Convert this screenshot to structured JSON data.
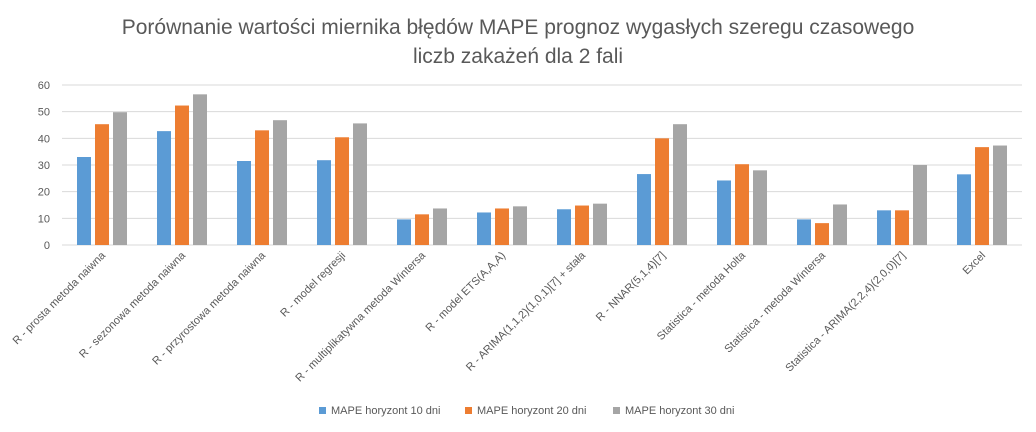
{
  "chart_data": {
    "type": "bar",
    "title": [
      "Porównanie wartości miernika błędów MAPE prognoz wygasłych szeregu czasowego",
      "liczb zakażeń dla 2 fali"
    ],
    "xlabel": "",
    "ylabel": "",
    "ylim": [
      0,
      60
    ],
    "yticks": [
      0,
      10,
      20,
      30,
      40,
      50,
      60
    ],
    "grid": true,
    "legend_position": "bottom",
    "categories": [
      "R - prosta metoda naiwna",
      "R - sezonowa metoda naiwna",
      "R - przyrostowa metoda naiwna",
      "R - model regresji",
      "R - multiplikatywna metoda Wintersa",
      "R - model ETS(A,A,A)",
      "R - ARIMA(1,1,2)(1,0,1)[7] + stała",
      "R - NNAR(5,1,4)[7]",
      "Statistica - metoda Holta",
      "Statistica - metoda Wintersa",
      "Statistica - ARIMA(2,2,4)(2,0,0)[7]",
      "Excel"
    ],
    "series": [
      {
        "name": "MAPE horyzont 10 dni",
        "color": "#5b9bd5",
        "values": [
          33.0,
          42.7,
          31.5,
          31.8,
          9.6,
          12.2,
          13.4,
          26.6,
          24.2,
          9.6,
          13.0,
          26.5
        ]
      },
      {
        "name": "MAPE horyzont 20 dni",
        "color": "#ed7d31",
        "values": [
          45.3,
          52.3,
          43.0,
          40.4,
          11.5,
          13.7,
          14.8,
          40.0,
          30.3,
          8.2,
          13.0,
          36.7
        ]
      },
      {
        "name": "MAPE horyzont 30 dni",
        "color": "#a5a5a5",
        "values": [
          49.8,
          56.5,
          46.8,
          45.6,
          13.7,
          14.5,
          15.5,
          45.3,
          28.0,
          15.2,
          30.0,
          37.3
        ]
      }
    ]
  }
}
